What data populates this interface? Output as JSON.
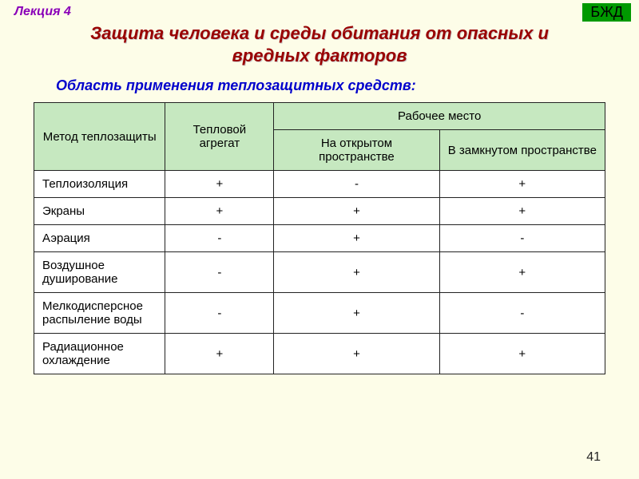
{
  "lecture_label": "Лекция 4",
  "badge": "БЖД",
  "title_line1": "Защита человека и среды обитания от опасных и",
  "title_line2": "вредных факторов",
  "subtitle": "Область применения теплозащитных средств:",
  "page_number": "41",
  "table": {
    "columns": [
      "Метод теплозащиты",
      "Тепловой агрегат",
      "Рабочее место"
    ],
    "sub_columns": [
      "На открытом пространстве",
      "В замкнутом пространстве"
    ],
    "rows": [
      {
        "label": "Теплоизоляция",
        "v1": "+",
        "v2": "-",
        "v3": "+"
      },
      {
        "label": "Экраны",
        "v1": "+",
        "v2": "+",
        "v3": "+"
      },
      {
        "label": "Аэрация",
        "v1": "-",
        "v2": "+",
        "v3": "-"
      },
      {
        "label": "Воздушное душирование",
        "v1": "-",
        "v2": "+",
        "v3": "+"
      },
      {
        "label": "Мелкодисперсное распыление воды",
        "v1": "-",
        "v2": "+",
        "v3": "-"
      },
      {
        "label": "Радиационное охлаждение",
        "v1": "+",
        "v2": "+",
        "v3": "+"
      }
    ],
    "col_widths": [
      "23%",
      "19%",
      "29%",
      "29%"
    ],
    "header_bg": "#c6e8c0",
    "border_color": "#222222",
    "cell_bg": "#ffffff"
  },
  "colors": {
    "page_bg": "#fdfde8",
    "title_color": "#990000",
    "subtitle_color": "#0000cc",
    "lecture_color": "#8a00b8",
    "badge_bg": "#009900"
  }
}
